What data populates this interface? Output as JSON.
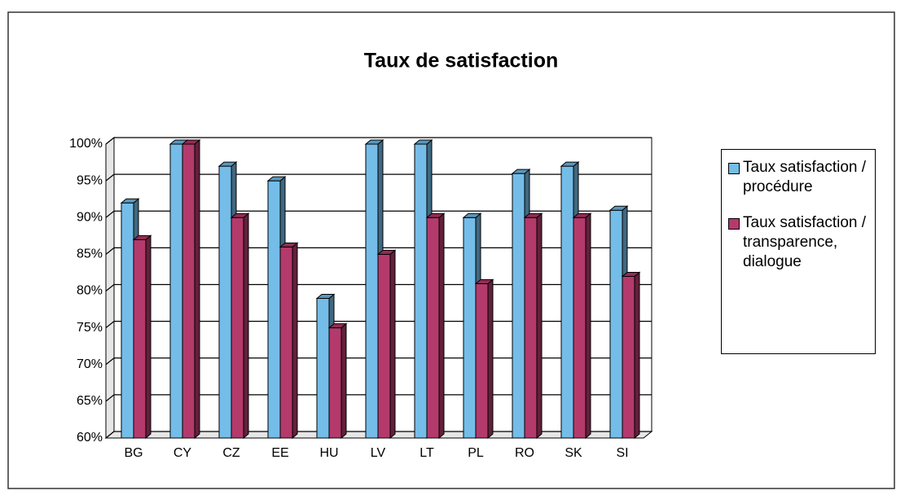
{
  "chart_data": {
    "type": "bar",
    "title": "Taux de satisfaction",
    "categories": [
      "BG",
      "CY",
      "CZ",
      "EE",
      "HU",
      "LV",
      "LT",
      "PL",
      "RO",
      "SK",
      "SI"
    ],
    "series": [
      {
        "name": "Taux satisfaction / procédure",
        "color": "#74bde8",
        "values": [
          92,
          100,
          97,
          95,
          79,
          100,
          100,
          90,
          96,
          97,
          91
        ]
      },
      {
        "name": "Taux satisfaction / transparence, dialogue",
        "color": "#b43a6c",
        "values": [
          87,
          100,
          90,
          86,
          75,
          85,
          90,
          81,
          90,
          90,
          82
        ]
      }
    ],
    "ylim": [
      60,
      100
    ],
    "yticks": [
      {
        "value": 60,
        "label": "60%"
      },
      {
        "value": 65,
        "label": "65%"
      },
      {
        "value": 70,
        "label": "70%"
      },
      {
        "value": 75,
        "label": "75%"
      },
      {
        "value": 80,
        "label": "80%"
      },
      {
        "value": 85,
        "label": "85%"
      },
      {
        "value": 90,
        "label": "90%"
      },
      {
        "value": 95,
        "label": "95%"
      },
      {
        "value": 100,
        "label": "100%"
      }
    ],
    "grid": true,
    "legend": "right"
  }
}
